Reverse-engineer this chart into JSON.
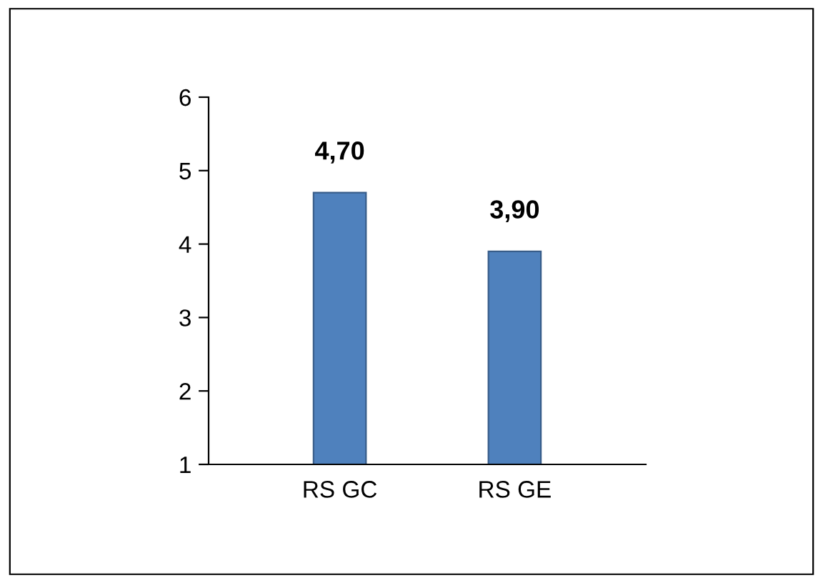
{
  "chart_data": {
    "type": "bar",
    "categories": [
      "RS GC",
      "RS GE"
    ],
    "values": [
      4.7,
      3.9
    ],
    "color": "#4f81bd",
    "value_labels": [
      "4,70",
      "3,90"
    ],
    "ylim": [
      1,
      6
    ],
    "yticks": [
      1,
      2,
      3,
      4,
      5,
      6
    ],
    "grid": false,
    "legend": false
  }
}
